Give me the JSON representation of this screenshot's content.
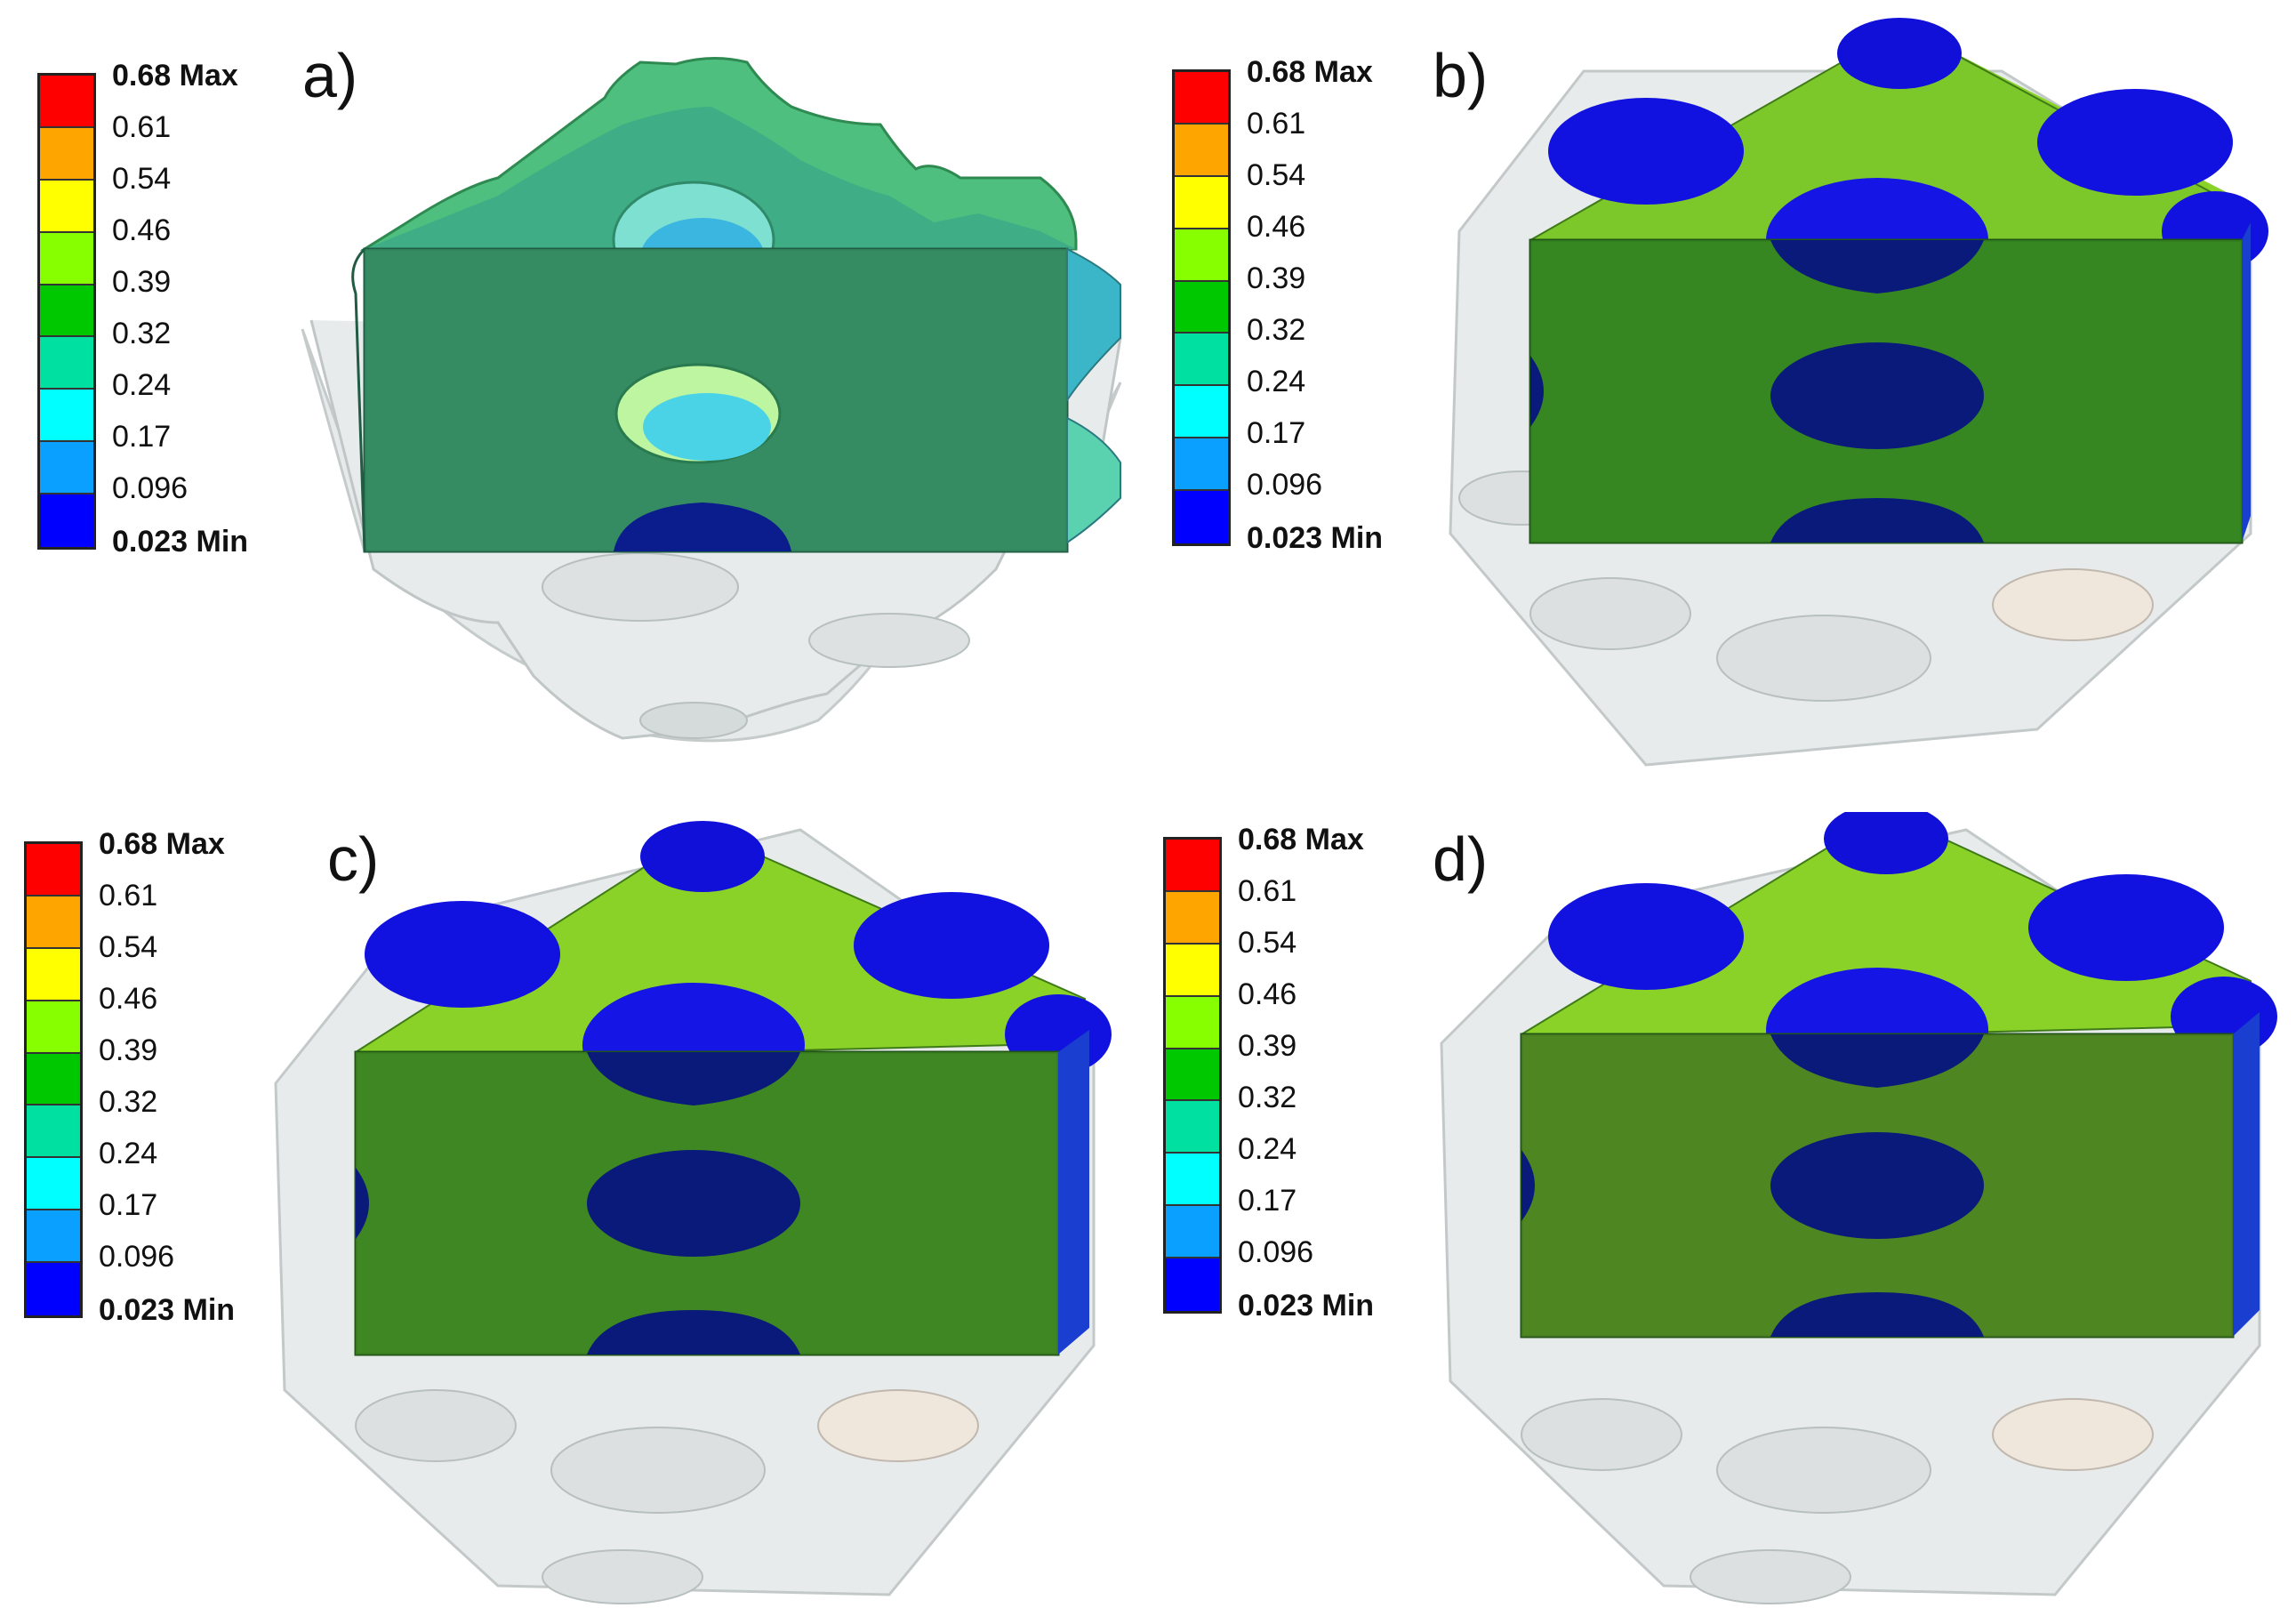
{
  "legend": {
    "colors": [
      "#ff0000",
      "#ffa500",
      "#ffff00",
      "#88ff00",
      "#00c800",
      "#00e0a0",
      "#00ffff",
      "#0aa0ff",
      "#0000ff"
    ],
    "labels": [
      "0.68 Max",
      "0.61",
      "0.54",
      "0.46",
      "0.39",
      "0.32",
      "0.24",
      "0.17",
      "0.096",
      "0.023 Min"
    ]
  },
  "panels": [
    {
      "label": "a)"
    },
    {
      "label": "b)"
    },
    {
      "label": "c)"
    },
    {
      "label": "d)"
    }
  ]
}
